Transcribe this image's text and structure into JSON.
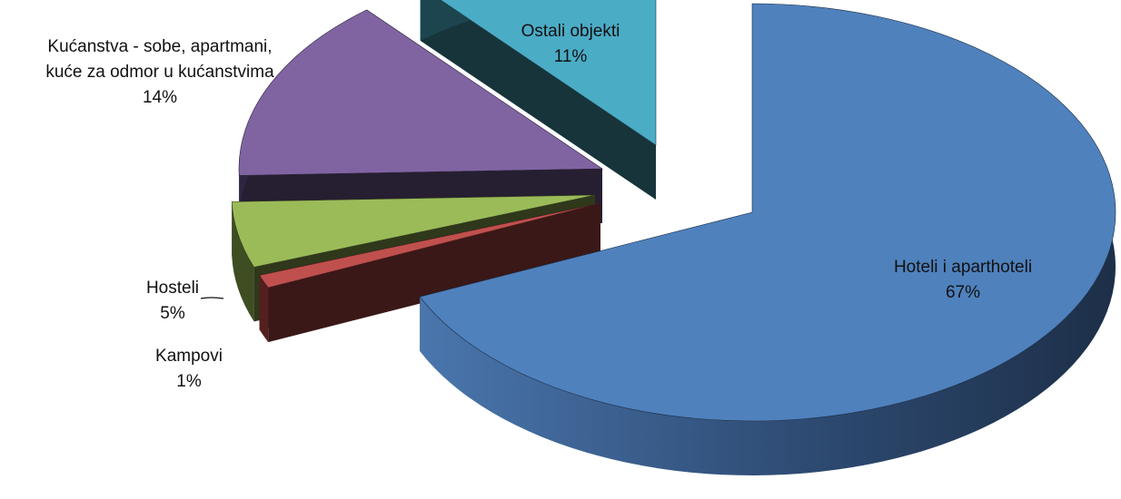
{
  "chart_data": {
    "type": "pie",
    "title": "",
    "three_d": true,
    "exploded": true,
    "categories": [
      "Hoteli i aparthoteli",
      "Kampovi",
      "Hosteli",
      "Kućanstva - sobe, apartmani, kuće za odmor u kućanstvima",
      "Ostali objekti"
    ],
    "values": [
      67,
      1,
      5,
      14,
      11
    ],
    "value_labels": [
      "67%",
      "1%",
      "5%",
      "14%",
      "11%"
    ],
    "label_lines": [
      [
        "Hoteli i aparthoteli",
        "67%"
      ],
      [
        "Kampovi",
        "1%"
      ],
      [
        "Hosteli",
        "5%"
      ],
      [
        "Kućanstva - sobe, apartmani,",
        "kuće za odmor u kućanstvima",
        "14%"
      ],
      [
        "Ostali objekti",
        "11%"
      ]
    ],
    "colors": [
      "#4F81BD",
      "#C0504D",
      "#9BBB59",
      "#8064A2",
      "#4BACC6"
    ],
    "legend": "none"
  }
}
